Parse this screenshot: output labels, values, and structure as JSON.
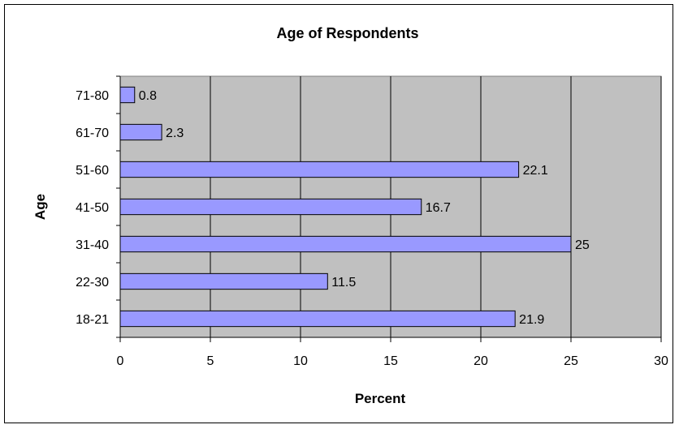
{
  "chart_data": {
    "type": "bar",
    "orientation": "horizontal",
    "title": "Age of Respondents",
    "xlabel": "Percent",
    "ylabel": "Age",
    "categories": [
      "18-21",
      "22-30",
      "31-40",
      "41-50",
      "51-60",
      "61-70",
      "71-80"
    ],
    "values": [
      21.9,
      11.5,
      25,
      16.7,
      22.1,
      2.3,
      0.8
    ],
    "data_labels": [
      "21.9",
      "11.5",
      "25",
      "16.7",
      "22.1",
      "2.3",
      "0.8"
    ],
    "xlim": [
      0,
      30
    ],
    "xticks": [
      "0",
      "5",
      "10",
      "15",
      "20",
      "25",
      "30"
    ],
    "xtick_values": [
      0,
      5,
      10,
      15,
      20,
      25,
      30
    ],
    "grid": "vertical",
    "legend": "none",
    "colors": {
      "bar_fill": "#9999ff",
      "bar_stroke": "#000000",
      "plot_background": "#c0c0c0",
      "gridline": "#000000"
    }
  }
}
